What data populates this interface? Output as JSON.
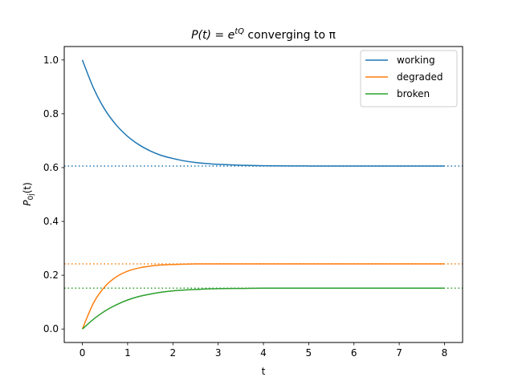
{
  "chart_data": {
    "type": "line",
    "title": {
      "prefix": "P(t) = e",
      "superscript": "tQ",
      "suffix": " converging to π"
    },
    "xlabel": "t",
    "ylabel": {
      "main": "P",
      "subscript": "0j",
      "suffix": "(t)"
    },
    "xlim": [
      -0.4,
      8.4
    ],
    "ylim": [
      -0.05,
      1.05
    ],
    "xticks": [
      "0",
      "1",
      "2",
      "3",
      "4",
      "5",
      "6",
      "7",
      "8"
    ],
    "yticks": [
      "0.0",
      "0.2",
      "0.4",
      "0.6",
      "0.8",
      "1.0"
    ],
    "grid": false,
    "legend_position": "top-right",
    "x": [
      0,
      0.25,
      0.5,
      0.75,
      1,
      1.25,
      1.5,
      1.75,
      2,
      2.25,
      2.5,
      2.75,
      3,
      3.5,
      4,
      5,
      6,
      7,
      8
    ],
    "series": [
      {
        "name": "working",
        "color": "#1f77b4",
        "stationary": 0.606,
        "values": [
          1.0,
          0.894,
          0.815,
          0.758,
          0.716,
          0.685,
          0.662,
          0.645,
          0.634,
          0.625,
          0.619,
          0.615,
          0.612,
          0.609,
          0.607,
          0.606,
          0.606,
          0.606,
          0.606
        ]
      },
      {
        "name": "degraded",
        "color": "#ff7f0e",
        "stationary": 0.242,
        "values": [
          0.0,
          0.098,
          0.158,
          0.194,
          0.215,
          0.227,
          0.234,
          0.238,
          0.24,
          0.241,
          0.242,
          0.242,
          0.242,
          0.242,
          0.242,
          0.242,
          0.242,
          0.242,
          0.242
        ]
      },
      {
        "name": "broken",
        "color": "#2ca02c",
        "stationary": 0.152,
        "values": [
          0.0,
          0.037,
          0.067,
          0.09,
          0.108,
          0.121,
          0.13,
          0.137,
          0.142,
          0.145,
          0.147,
          0.149,
          0.15,
          0.151,
          0.152,
          0.152,
          0.152,
          0.152,
          0.152
        ]
      }
    ]
  }
}
